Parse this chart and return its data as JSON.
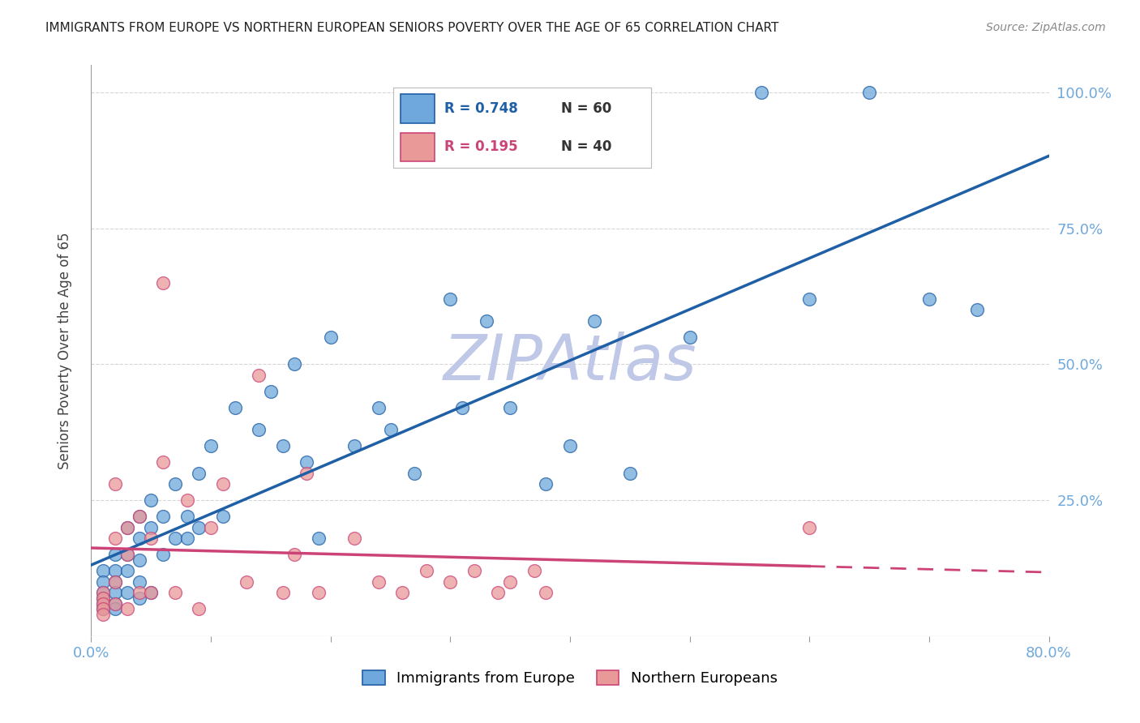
{
  "title": "IMMIGRANTS FROM EUROPE VS NORTHERN EUROPEAN SENIORS POVERTY OVER THE AGE OF 65 CORRELATION CHART",
  "source": "Source: ZipAtlas.com",
  "ylabel": "Seniors Poverty Over the Age of 65",
  "xlim": [
    0.0,
    0.8
  ],
  "ylim": [
    0.0,
    1.05
  ],
  "blue_color": "#6fa8dc",
  "pink_color": "#ea9999",
  "blue_line_color": "#1f5fa6",
  "pink_line_color": "#cc4477",
  "watermark": "ZIPAtlas",
  "watermark_color": "#c0c8e8",
  "legend_r_blue": "R = 0.748",
  "legend_n_blue": "N = 60",
  "legend_r_pink": "R = 0.195",
  "legend_n_pink": "N = 40",
  "legend_label_blue": "Immigrants from Europe",
  "legend_label_pink": "Northern Europeans",
  "blue_scatter_x": [
    0.01,
    0.01,
    0.01,
    0.01,
    0.01,
    0.01,
    0.02,
    0.02,
    0.02,
    0.02,
    0.02,
    0.02,
    0.03,
    0.03,
    0.03,
    0.03,
    0.04,
    0.04,
    0.04,
    0.04,
    0.04,
    0.05,
    0.05,
    0.05,
    0.06,
    0.06,
    0.07,
    0.07,
    0.08,
    0.08,
    0.09,
    0.09,
    0.1,
    0.11,
    0.12,
    0.14,
    0.15,
    0.16,
    0.17,
    0.18,
    0.19,
    0.2,
    0.22,
    0.24,
    0.25,
    0.27,
    0.3,
    0.31,
    0.33,
    0.35,
    0.38,
    0.4,
    0.42,
    0.45,
    0.5,
    0.56,
    0.6,
    0.65,
    0.7,
    0.74
  ],
  "blue_scatter_y": [
    0.12,
    0.1,
    0.08,
    0.07,
    0.06,
    0.05,
    0.15,
    0.12,
    0.1,
    0.08,
    0.06,
    0.05,
    0.2,
    0.15,
    0.12,
    0.08,
    0.22,
    0.18,
    0.14,
    0.1,
    0.07,
    0.25,
    0.2,
    0.08,
    0.22,
    0.15,
    0.28,
    0.18,
    0.22,
    0.18,
    0.3,
    0.2,
    0.35,
    0.22,
    0.42,
    0.38,
    0.45,
    0.35,
    0.5,
    0.32,
    0.18,
    0.55,
    0.35,
    0.42,
    0.38,
    0.3,
    0.62,
    0.42,
    0.58,
    0.42,
    0.28,
    0.35,
    0.58,
    0.3,
    0.55,
    1.0,
    0.62,
    1.0,
    0.62,
    0.6
  ],
  "pink_scatter_x": [
    0.01,
    0.01,
    0.01,
    0.01,
    0.01,
    0.02,
    0.02,
    0.02,
    0.02,
    0.03,
    0.03,
    0.03,
    0.04,
    0.04,
    0.05,
    0.05,
    0.06,
    0.06,
    0.07,
    0.08,
    0.09,
    0.1,
    0.11,
    0.13,
    0.14,
    0.16,
    0.17,
    0.18,
    0.19,
    0.22,
    0.24,
    0.26,
    0.28,
    0.3,
    0.32,
    0.34,
    0.35,
    0.37,
    0.38,
    0.6
  ],
  "pink_scatter_y": [
    0.08,
    0.07,
    0.06,
    0.05,
    0.04,
    0.28,
    0.18,
    0.1,
    0.06,
    0.2,
    0.15,
    0.05,
    0.22,
    0.08,
    0.18,
    0.08,
    0.65,
    0.32,
    0.08,
    0.25,
    0.05,
    0.2,
    0.28,
    0.1,
    0.48,
    0.08,
    0.15,
    0.3,
    0.08,
    0.18,
    0.1,
    0.08,
    0.12,
    0.1,
    0.12,
    0.08,
    0.1,
    0.12,
    0.08,
    0.2
  ],
  "background_color": "#ffffff",
  "grid_color": "#cccccc"
}
